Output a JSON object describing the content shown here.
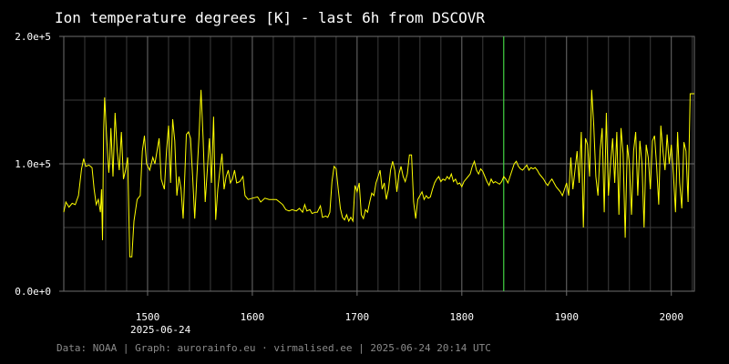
{
  "colors": {
    "background": "#000000",
    "series": "#ffff00",
    "marker": "#44ee44",
    "grid_major": "#6e6e6e",
    "grid_minor": "#3c3c3c",
    "text": "#ffffff",
    "footer_text": "#8a8a8a"
  },
  "footer": {
    "text": "Data: NOAA | Graph: aurorainfo.eu · virmalised.ee | 2025-06-24 20:14 UTC"
  },
  "chart_data": {
    "type": "line",
    "title": "Ion temperature degrees [K] - last 6h from DSCOVR",
    "xlabel": "",
    "ylabel": "",
    "xlim": [
      1420,
      2022
    ],
    "ylim": [
      0,
      200000
    ],
    "x_ticks": [
      1500,
      1600,
      1700,
      1800,
      1900,
      2000
    ],
    "x_date_label": "2025-06-24",
    "y_ticks": [
      0,
      100000,
      200000
    ],
    "y_tick_labels": [
      "0.0e+0",
      "1.0e+5",
      "2.0e+5"
    ],
    "grid": true,
    "marker_line_x": 1840,
    "series": [
      {
        "points": [
          [
            1420,
            62000
          ],
          [
            1422,
            70000
          ],
          [
            1425,
            66000
          ],
          [
            1428,
            69000
          ],
          [
            1431,
            68000
          ],
          [
            1434,
            75000
          ],
          [
            1437,
            96000
          ],
          [
            1439,
            104000
          ],
          [
            1441,
            98000
          ],
          [
            1444,
            99000
          ],
          [
            1447,
            97000
          ],
          [
            1449,
            80000
          ],
          [
            1451,
            68000
          ],
          [
            1453,
            72000
          ],
          [
            1455,
            62000
          ],
          [
            1456,
            80000
          ],
          [
            1457,
            40000
          ],
          [
            1458,
            125000
          ],
          [
            1459,
            152000
          ],
          [
            1461,
            120000
          ],
          [
            1463,
            93000
          ],
          [
            1464,
            105000
          ],
          [
            1465,
            128000
          ],
          [
            1467,
            90000
          ],
          [
            1469,
            140000
          ],
          [
            1471,
            110000
          ],
          [
            1473,
            95000
          ],
          [
            1475,
            125000
          ],
          [
            1477,
            88000
          ],
          [
            1479,
            95000
          ],
          [
            1481,
            105000
          ],
          [
            1483,
            27000
          ],
          [
            1485,
            27000
          ],
          [
            1487,
            55000
          ],
          [
            1490,
            72000
          ],
          [
            1493,
            75000
          ],
          [
            1495,
            110000
          ],
          [
            1497,
            122000
          ],
          [
            1499,
            100000
          ],
          [
            1502,
            95000
          ],
          [
            1505,
            105000
          ],
          [
            1507,
            100000
          ],
          [
            1509,
            110000
          ],
          [
            1511,
            120000
          ],
          [
            1513,
            88000
          ],
          [
            1516,
            80000
          ],
          [
            1518,
            110000
          ],
          [
            1520,
            130000
          ],
          [
            1522,
            85000
          ],
          [
            1524,
            135000
          ],
          [
            1526,
            118000
          ],
          [
            1528,
            75000
          ],
          [
            1530,
            90000
          ],
          [
            1532,
            80000
          ],
          [
            1534,
            57000
          ],
          [
            1537,
            123000
          ],
          [
            1539,
            125000
          ],
          [
            1541,
            120000
          ],
          [
            1543,
            90000
          ],
          [
            1545,
            57000
          ],
          [
            1547,
            90000
          ],
          [
            1549,
            120000
          ],
          [
            1551,
            158000
          ],
          [
            1553,
            120000
          ],
          [
            1555,
            70000
          ],
          [
            1557,
            95000
          ],
          [
            1559,
            120000
          ],
          [
            1561,
            85000
          ],
          [
            1563,
            137000
          ],
          [
            1565,
            56000
          ],
          [
            1567,
            80000
          ],
          [
            1569,
            95000
          ],
          [
            1571,
            108000
          ],
          [
            1573,
            80000
          ],
          [
            1575,
            90000
          ],
          [
            1577,
            95000
          ],
          [
            1579,
            85000
          ],
          [
            1581,
            88000
          ],
          [
            1583,
            95000
          ],
          [
            1585,
            85000
          ],
          [
            1588,
            86000
          ],
          [
            1591,
            90000
          ],
          [
            1593,
            75000
          ],
          [
            1596,
            72000
          ],
          [
            1600,
            73000
          ],
          [
            1605,
            74000
          ],
          [
            1608,
            70000
          ],
          [
            1612,
            73000
          ],
          [
            1616,
            72000
          ],
          [
            1620,
            72000
          ],
          [
            1623,
            72000
          ],
          [
            1626,
            70000
          ],
          [
            1629,
            68000
          ],
          [
            1632,
            64000
          ],
          [
            1635,
            63000
          ],
          [
            1638,
            64000
          ],
          [
            1642,
            63000
          ],
          [
            1645,
            65000
          ],
          [
            1648,
            62000
          ],
          [
            1650,
            68000
          ],
          [
            1652,
            63000
          ],
          [
            1655,
            64000
          ],
          [
            1657,
            61000
          ],
          [
            1660,
            62000
          ],
          [
            1662,
            62000
          ],
          [
            1665,
            67000
          ],
          [
            1667,
            58000
          ],
          [
            1670,
            59000
          ],
          [
            1672,
            58000
          ],
          [
            1674,
            62000
          ],
          [
            1676,
            86000
          ],
          [
            1678,
            98000
          ],
          [
            1680,
            96000
          ],
          [
            1682,
            80000
          ],
          [
            1684,
            65000
          ],
          [
            1686,
            58000
          ],
          [
            1688,
            56000
          ],
          [
            1690,
            60000
          ],
          [
            1692,
            55000
          ],
          [
            1694,
            58000
          ],
          [
            1696,
            55000
          ],
          [
            1698,
            83000
          ],
          [
            1700,
            78000
          ],
          [
            1702,
            85000
          ],
          [
            1704,
            60000
          ],
          [
            1706,
            57000
          ],
          [
            1708,
            64000
          ],
          [
            1710,
            62000
          ],
          [
            1712,
            70000
          ],
          [
            1714,
            77000
          ],
          [
            1716,
            75000
          ],
          [
            1718,
            85000
          ],
          [
            1720,
            90000
          ],
          [
            1722,
            95000
          ],
          [
            1724,
            80000
          ],
          [
            1726,
            85000
          ],
          [
            1728,
            72000
          ],
          [
            1730,
            80000
          ],
          [
            1732,
            95000
          ],
          [
            1734,
            102000
          ],
          [
            1736,
            95000
          ],
          [
            1738,
            78000
          ],
          [
            1740,
            92000
          ],
          [
            1742,
            98000
          ],
          [
            1744,
            90000
          ],
          [
            1746,
            86000
          ],
          [
            1748,
            92000
          ],
          [
            1750,
            107000
          ],
          [
            1752,
            107000
          ],
          [
            1754,
            70000
          ],
          [
            1756,
            57000
          ],
          [
            1758,
            72000
          ],
          [
            1760,
            75000
          ],
          [
            1762,
            78000
          ],
          [
            1764,
            72000
          ],
          [
            1766,
            75000
          ],
          [
            1768,
            73000
          ],
          [
            1770,
            74000
          ],
          [
            1772,
            80000
          ],
          [
            1774,
            85000
          ],
          [
            1776,
            88000
          ],
          [
            1778,
            90000
          ],
          [
            1780,
            86000
          ],
          [
            1782,
            88000
          ],
          [
            1784,
            87000
          ],
          [
            1786,
            90000
          ],
          [
            1788,
            88000
          ],
          [
            1790,
            92000
          ],
          [
            1792,
            86000
          ],
          [
            1794,
            88000
          ],
          [
            1796,
            84000
          ],
          [
            1798,
            85000
          ],
          [
            1800,
            82000
          ],
          [
            1802,
            86000
          ],
          [
            1804,
            88000
          ],
          [
            1806,
            90000
          ],
          [
            1808,
            92000
          ],
          [
            1810,
            98000
          ],
          [
            1812,
            102000
          ],
          [
            1814,
            95000
          ],
          [
            1816,
            92000
          ],
          [
            1818,
            96000
          ],
          [
            1820,
            94000
          ],
          [
            1822,
            90000
          ],
          [
            1824,
            86000
          ],
          [
            1826,
            83000
          ],
          [
            1828,
            88000
          ],
          [
            1830,
            85000
          ],
          [
            1832,
            86000
          ],
          [
            1834,
            85000
          ],
          [
            1836,
            84000
          ],
          [
            1838,
            86000
          ],
          [
            1840,
            90000
          ],
          [
            1842,
            88000
          ],
          [
            1844,
            85000
          ],
          [
            1846,
            90000
          ],
          [
            1848,
            95000
          ],
          [
            1850,
            100000
          ],
          [
            1852,
            102000
          ],
          [
            1854,
            98000
          ],
          [
            1856,
            96000
          ],
          [
            1858,
            95000
          ],
          [
            1860,
            97000
          ],
          [
            1862,
            99000
          ],
          [
            1864,
            95000
          ],
          [
            1866,
            97000
          ],
          [
            1868,
            96000
          ],
          [
            1870,
            97000
          ],
          [
            1872,
            95000
          ],
          [
            1874,
            92000
          ],
          [
            1876,
            90000
          ],
          [
            1878,
            88000
          ],
          [
            1880,
            85000
          ],
          [
            1882,
            83000
          ],
          [
            1884,
            86000
          ],
          [
            1886,
            88000
          ],
          [
            1888,
            85000
          ],
          [
            1890,
            82000
          ],
          [
            1892,
            80000
          ],
          [
            1894,
            78000
          ],
          [
            1896,
            75000
          ],
          [
            1898,
            80000
          ],
          [
            1900,
            85000
          ],
          [
            1902,
            75000
          ],
          [
            1904,
            105000
          ],
          [
            1906,
            80000
          ],
          [
            1908,
            95000
          ],
          [
            1910,
            110000
          ],
          [
            1912,
            85000
          ],
          [
            1914,
            125000
          ],
          [
            1916,
            50000
          ],
          [
            1918,
            120000
          ],
          [
            1920,
            115000
          ],
          [
            1922,
            90000
          ],
          [
            1924,
            158000
          ],
          [
            1926,
            130000
          ],
          [
            1928,
            90000
          ],
          [
            1930,
            75000
          ],
          [
            1932,
            110000
          ],
          [
            1934,
            128000
          ],
          [
            1936,
            62000
          ],
          [
            1938,
            140000
          ],
          [
            1940,
            75000
          ],
          [
            1942,
            100000
          ],
          [
            1944,
            120000
          ],
          [
            1946,
            85000
          ],
          [
            1948,
            125000
          ],
          [
            1950,
            60000
          ],
          [
            1952,
            128000
          ],
          [
            1954,
            108000
          ],
          [
            1956,
            42000
          ],
          [
            1958,
            115000
          ],
          [
            1960,
            100000
          ],
          [
            1962,
            60000
          ],
          [
            1964,
            110000
          ],
          [
            1966,
            125000
          ],
          [
            1968,
            75000
          ],
          [
            1970,
            118000
          ],
          [
            1972,
            100000
          ],
          [
            1974,
            50000
          ],
          [
            1976,
            115000
          ],
          [
            1978,
            105000
          ],
          [
            1980,
            80000
          ],
          [
            1982,
            118000
          ],
          [
            1984,
            122000
          ],
          [
            1986,
            98000
          ],
          [
            1988,
            68000
          ],
          [
            1990,
            130000
          ],
          [
            1992,
            110000
          ],
          [
            1994,
            95000
          ],
          [
            1996,
            123000
          ],
          [
            1998,
            100000
          ],
          [
            2000,
            115000
          ],
          [
            2002,
            92000
          ],
          [
            2004,
            62000
          ],
          [
            2006,
            125000
          ],
          [
            2008,
            85000
          ],
          [
            2010,
            65000
          ],
          [
            2012,
            117000
          ],
          [
            2014,
            110000
          ],
          [
            2016,
            70000
          ],
          [
            2018,
            155000
          ],
          [
            2022,
            155000
          ]
        ]
      }
    ]
  }
}
